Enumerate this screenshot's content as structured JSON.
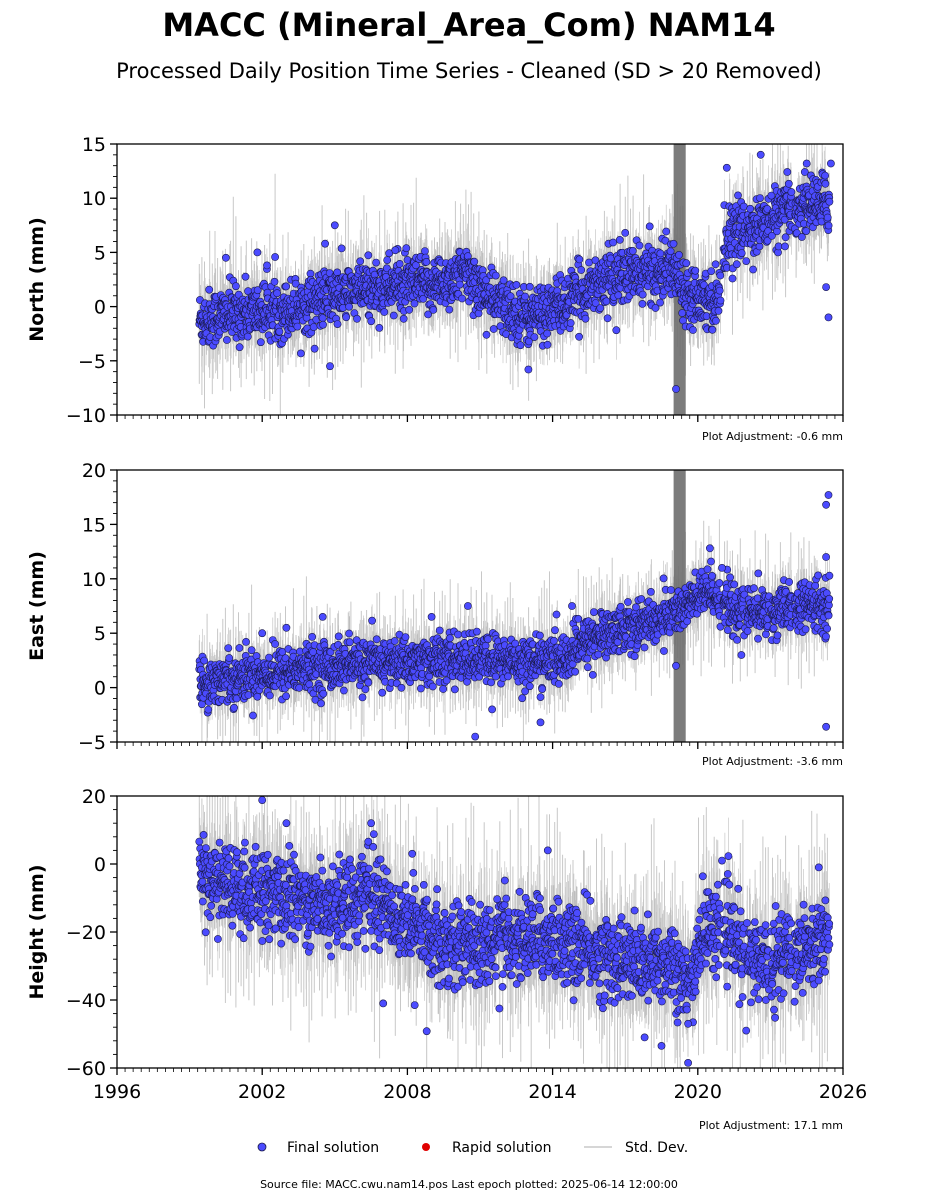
{
  "title": "MACC (Mineral_Area_Com) NAM14",
  "subtitle": "Processed Daily Position Time Series - Cleaned (SD > 20 Removed)",
  "legend": {
    "final": "Final solution",
    "rapid": "Rapid solution",
    "std": "Std. Dev."
  },
  "footer": "Source file: MACC.cwu.nam14.pos  Last epoch plotted: 2025-06-14 12:00:00",
  "colors": {
    "final": "#4b4bff",
    "final_edge": "#1a1a4a",
    "rapid": "#e00000",
    "std": "#c8c8c8",
    "std_dense": "#6e6e6e"
  },
  "chart_data": {
    "type": "scatter",
    "x_ticks": [
      "1996",
      "2002",
      "2008",
      "2014",
      "2020",
      "2026"
    ],
    "x_tick_values": [
      1996,
      2002,
      2008,
      2014,
      2020,
      2026
    ],
    "xlim": [
      1996,
      2026
    ],
    "panels": [
      {
        "ylabel": "North (mm)",
        "ylim": [
          -10,
          15
        ],
        "y_ticks": [
          "−10",
          "−5",
          "0",
          "5",
          "10",
          "15"
        ],
        "y_tick_values": [
          -10,
          -5,
          0,
          5,
          10,
          15
        ],
        "adjustment": "Plot Adjustment: -0.6 mm",
        "trend": [
          [
            1999.5,
            -1.2
          ],
          [
            2001.0,
            -0.6
          ],
          [
            2003.0,
            -0.3
          ],
          [
            2005.0,
            1.0
          ],
          [
            2007.0,
            1.8
          ],
          [
            2009.0,
            2.0
          ],
          [
            2010.5,
            3.0
          ],
          [
            2011.5,
            0.5
          ],
          [
            2013.0,
            -1.0
          ],
          [
            2014.5,
            0.2
          ],
          [
            2016.0,
            2.5
          ],
          [
            2017.5,
            3.0
          ],
          [
            2019.0,
            3.5
          ],
          [
            2019.5,
            1.5
          ],
          [
            2020.8,
            0.5
          ],
          [
            2021.2,
            6.5
          ],
          [
            2022.5,
            7.5
          ],
          [
            2023.5,
            8.5
          ],
          [
            2024.5,
            9.5
          ],
          [
            2025.5,
            9.5
          ]
        ],
        "noise": 1.3,
        "spike_years": [
          2019.0,
          2019.5
        ],
        "outliers": [
          [
            2000.5,
            4.5
          ],
          [
            2001.8,
            5.0
          ],
          [
            2002.2,
            3.8
          ],
          [
            2004.6,
            5.8
          ],
          [
            2004.8,
            -5.5
          ],
          [
            2005.0,
            7.5
          ],
          [
            2007.5,
            5.2
          ],
          [
            2013.0,
            -5.8
          ],
          [
            2019.1,
            -7.6
          ],
          [
            2021.2,
            12.8
          ],
          [
            2022.6,
            14.0
          ],
          [
            2024.5,
            13.2
          ],
          [
            2025.5,
            13.2
          ],
          [
            2025.3,
            1.8
          ],
          [
            2025.4,
            -1.0
          ],
          [
            2022.0,
            4.2
          ],
          [
            2017.0,
            6.8
          ]
        ]
      },
      {
        "ylabel": "East (mm)",
        "ylim": [
          -5,
          20
        ],
        "y_ticks": [
          "−5",
          "0",
          "5",
          "10",
          "15",
          "20"
        ],
        "y_tick_values": [
          -5,
          0,
          5,
          10,
          15,
          20
        ],
        "adjustment": "Plot Adjustment: -3.6 mm",
        "trend": [
          [
            1999.5,
            0.5
          ],
          [
            2001.0,
            1.0
          ],
          [
            2003.0,
            1.5
          ],
          [
            2005.0,
            2.0
          ],
          [
            2007.0,
            2.3
          ],
          [
            2009.0,
            2.5
          ],
          [
            2011.0,
            2.6
          ],
          [
            2013.0,
            2.4
          ],
          [
            2014.5,
            2.6
          ],
          [
            2015.5,
            4.5
          ],
          [
            2017.0,
            5.5
          ],
          [
            2018.5,
            6.3
          ],
          [
            2019.5,
            7.5
          ],
          [
            2020.5,
            9.0
          ],
          [
            2021.5,
            7.0
          ],
          [
            2022.5,
            6.8
          ],
          [
            2023.5,
            7.0
          ],
          [
            2024.5,
            7.5
          ],
          [
            2025.5,
            7.5
          ]
        ],
        "noise": 1.1,
        "spike_years": [
          2019.0,
          2019.5
        ],
        "outliers": [
          [
            2002.0,
            5.0
          ],
          [
            2003.0,
            5.5
          ],
          [
            2004.5,
            6.5
          ],
          [
            2009.0,
            6.5
          ],
          [
            2010.5,
            7.5
          ],
          [
            2010.8,
            -4.5
          ],
          [
            2011.5,
            -2.0
          ],
          [
            2013.5,
            -3.2
          ],
          [
            2014.8,
            7.5
          ],
          [
            2019.1,
            2.0
          ],
          [
            2020.5,
            12.8
          ],
          [
            2021.0,
            11.0
          ],
          [
            2022.5,
            10.5
          ],
          [
            2025.4,
            17.7
          ],
          [
            2025.3,
            16.8
          ],
          [
            2025.3,
            12.0
          ],
          [
            2025.3,
            -3.6
          ],
          [
            2021.8,
            3.0
          ]
        ]
      },
      {
        "ylabel": "Height (mm)",
        "ylim": [
          -60,
          20
        ],
        "y_ticks": [
          "−60",
          "−40",
          "−20",
          "0",
          "20"
        ],
        "y_tick_values": [
          -60,
          -40,
          -20,
          0,
          20
        ],
        "adjustment": "Plot Adjustment: 17.1 mm",
        "trend": [
          [
            1999.5,
            -3.0
          ],
          [
            2001.0,
            -8.0
          ],
          [
            2003.0,
            -10.0
          ],
          [
            2005.0,
            -12.0
          ],
          [
            2006.5,
            -8.0
          ],
          [
            2008.0,
            -18.0
          ],
          [
            2010.0,
            -24.0
          ],
          [
            2012.0,
            -22.0
          ],
          [
            2014.0,
            -22.0
          ],
          [
            2016.0,
            -27.0
          ],
          [
            2018.0,
            -30.0
          ],
          [
            2019.0,
            -28.0
          ],
          [
            2019.6,
            -38.0
          ],
          [
            2020.2,
            -20.0
          ],
          [
            2021.0,
            -18.0
          ],
          [
            2022.0,
            -28.0
          ],
          [
            2023.0,
            -28.0
          ],
          [
            2024.0,
            -25.0
          ],
          [
            2025.5,
            -22.0
          ]
        ],
        "noise": 6.0,
        "spike_years": [],
        "outliers": [
          [
            2002.0,
            18.8
          ],
          [
            2003.0,
            12.0
          ],
          [
            2006.5,
            12.0
          ],
          [
            2008.2,
            3.0
          ],
          [
            2013.8,
            4.0
          ],
          [
            2007.0,
            -41.0
          ],
          [
            2008.3,
            -41.5
          ],
          [
            2011.8,
            -42.5
          ],
          [
            2017.8,
            -51.0
          ],
          [
            2018.5,
            -53.5
          ],
          [
            2019.6,
            -58.5
          ],
          [
            2019.6,
            -47.0
          ],
          [
            2022.0,
            -49.0
          ],
          [
            2024.0,
            -40.5
          ],
          [
            2025.0,
            -1.0
          ],
          [
            2021.0,
            1.0
          ]
        ]
      }
    ]
  }
}
